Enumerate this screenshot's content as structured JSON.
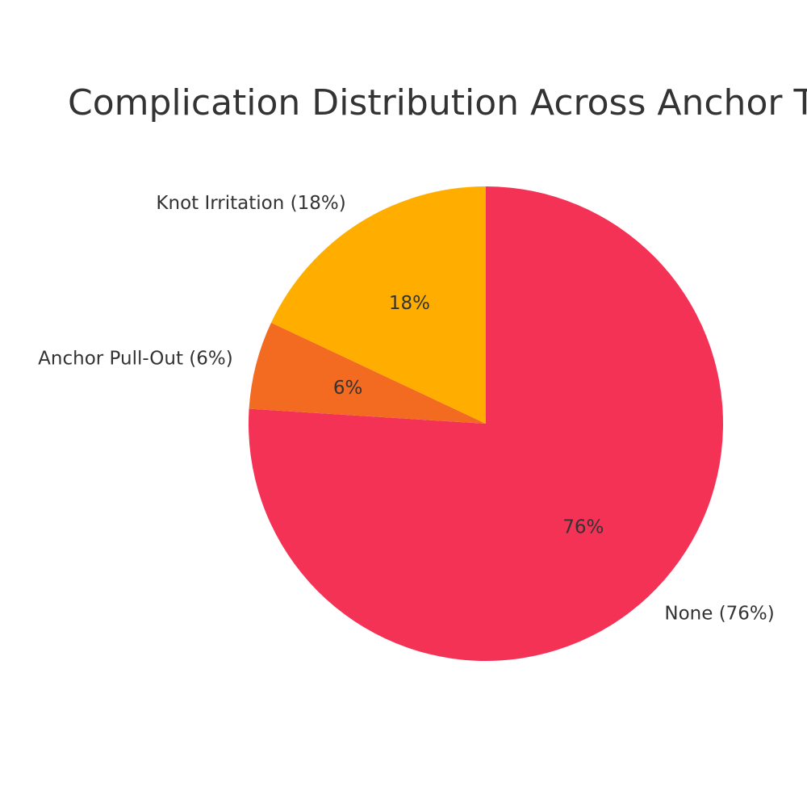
{
  "chart_data": {
    "type": "pie",
    "title": "Complication Distribution Across Anchor T",
    "slices": [
      {
        "label": "None (76%)",
        "value": 76,
        "pct_label": "76%",
        "color": "#F43256"
      },
      {
        "label": "Anchor Pull-Out (6%)",
        "value": 6,
        "pct_label": "6%",
        "color": "#F26B21"
      },
      {
        "label": "Knot Irritation (18%)",
        "value": 18,
        "pct_label": "18%",
        "color": "#FFAE00"
      }
    ],
    "start": "top",
    "direction": "clockwise",
    "legend": "none"
  }
}
